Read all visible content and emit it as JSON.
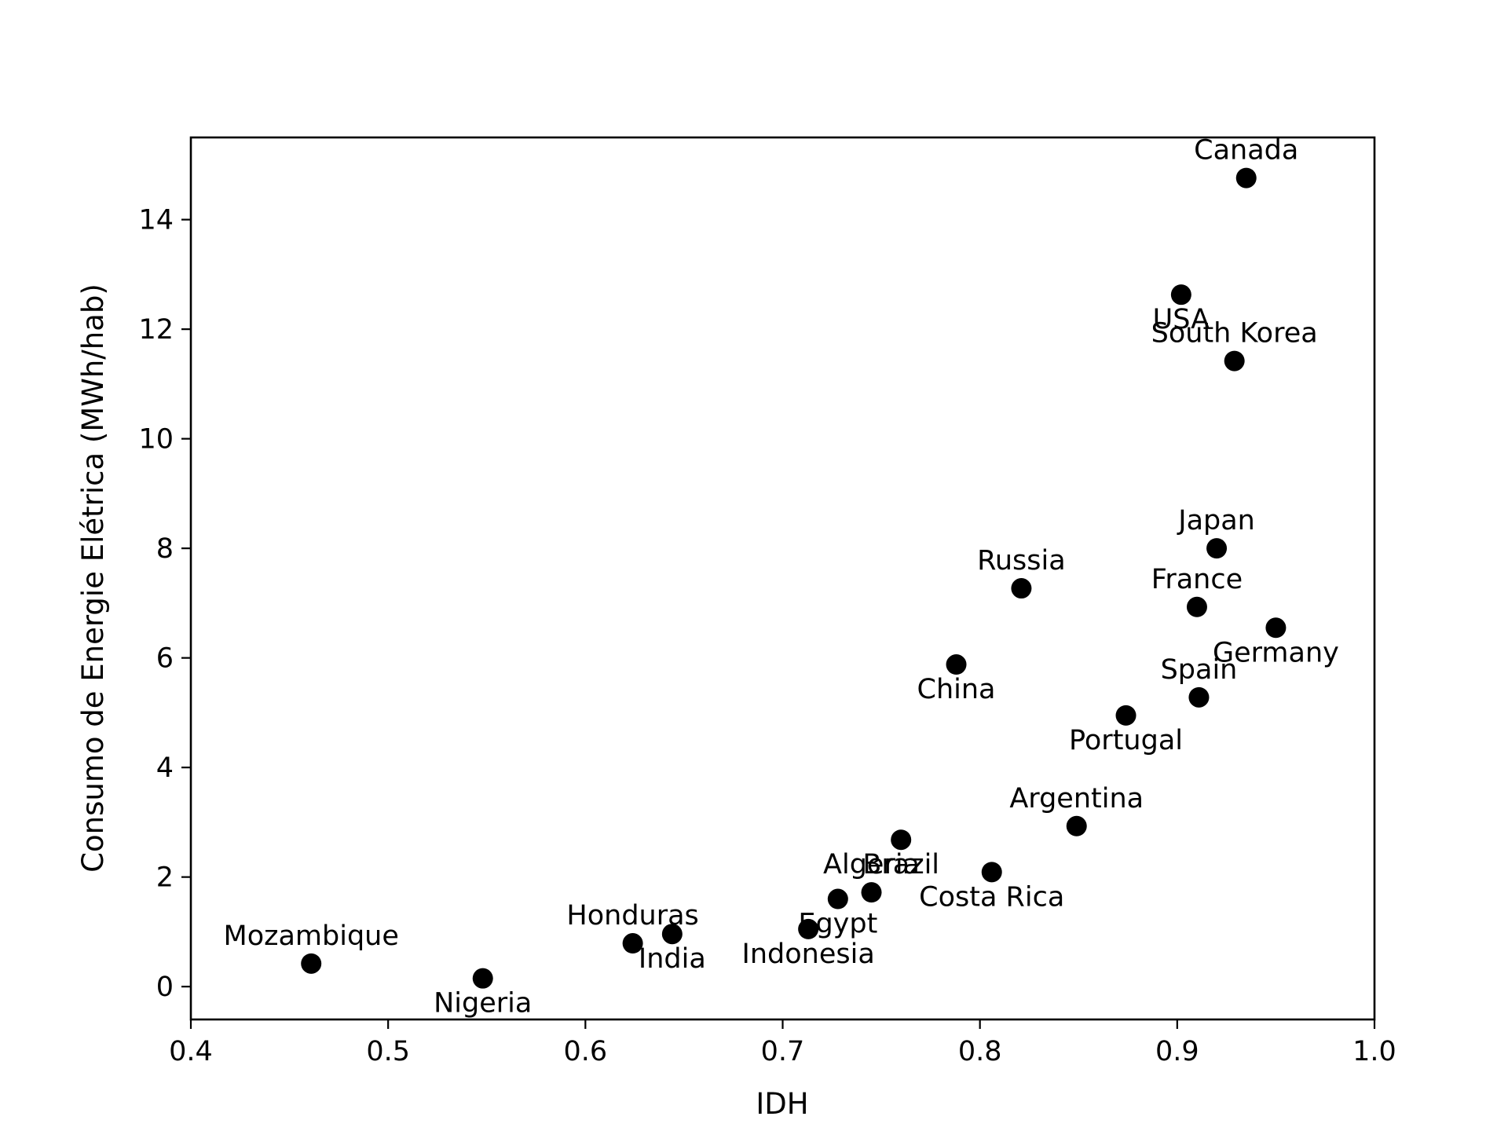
{
  "chart_data": {
    "type": "scatter",
    "title": "",
    "xlabel": "IDH",
    "ylabel": "Consumo de Energie Elétrica (MWh/hab)",
    "xlim": [
      0.4,
      1.0
    ],
    "ylim": [
      -0.6,
      15.5
    ],
    "x_ticks": [
      0.4,
      0.5,
      0.6,
      0.7,
      0.8,
      0.9,
      1.0
    ],
    "x_tick_labels": [
      "0.4",
      "0.5",
      "0.6",
      "0.7",
      "0.8",
      "0.9",
      "1.0"
    ],
    "y_ticks": [
      0,
      2,
      4,
      6,
      8,
      10,
      12,
      14
    ],
    "y_tick_labels": [
      "0",
      "2",
      "4",
      "6",
      "8",
      "10",
      "12",
      "14"
    ],
    "grid": false,
    "legend": "none",
    "marker_color": "#000000",
    "points": [
      {
        "label": "Mozambique",
        "x": 0.461,
        "y": 0.42,
        "label_pos": "above"
      },
      {
        "label": "Nigeria",
        "x": 0.548,
        "y": 0.15,
        "label_pos": "below"
      },
      {
        "label": "Honduras",
        "x": 0.624,
        "y": 0.79,
        "label_pos": "above"
      },
      {
        "label": "India",
        "x": 0.644,
        "y": 0.96,
        "label_pos": "below"
      },
      {
        "label": "Indonesia",
        "x": 0.713,
        "y": 1.05,
        "label_pos": "below"
      },
      {
        "label": "Egypt",
        "x": 0.728,
        "y": 1.6,
        "label_pos": "below"
      },
      {
        "label": "Algeria",
        "x": 0.745,
        "y": 1.72,
        "label_pos": "above"
      },
      {
        "label": "Brazil",
        "x": 0.76,
        "y": 2.68,
        "label_pos": "below"
      },
      {
        "label": "Costa Rica",
        "x": 0.806,
        "y": 2.09,
        "label_pos": "below"
      },
      {
        "label": "China",
        "x": 0.788,
        "y": 5.88,
        "label_pos": "below"
      },
      {
        "label": "Russia",
        "x": 0.821,
        "y": 7.27,
        "label_pos": "above"
      },
      {
        "label": "Argentina",
        "x": 0.849,
        "y": 2.93,
        "label_pos": "above"
      },
      {
        "label": "Portugal",
        "x": 0.874,
        "y": 4.95,
        "label_pos": "below"
      },
      {
        "label": "USA",
        "x": 0.902,
        "y": 12.63,
        "label_pos": "below"
      },
      {
        "label": "France",
        "x": 0.91,
        "y": 6.93,
        "label_pos": "above"
      },
      {
        "label": "Spain",
        "x": 0.911,
        "y": 5.28,
        "label_pos": "above"
      },
      {
        "label": "Japan",
        "x": 0.92,
        "y": 8.0,
        "label_pos": "above"
      },
      {
        "label": "South Korea",
        "x": 0.929,
        "y": 11.42,
        "label_pos": "above"
      },
      {
        "label": "Canada",
        "x": 0.935,
        "y": 14.76,
        "label_pos": "above"
      },
      {
        "label": "Germany",
        "x": 0.95,
        "y": 6.55,
        "label_pos": "below"
      }
    ]
  }
}
